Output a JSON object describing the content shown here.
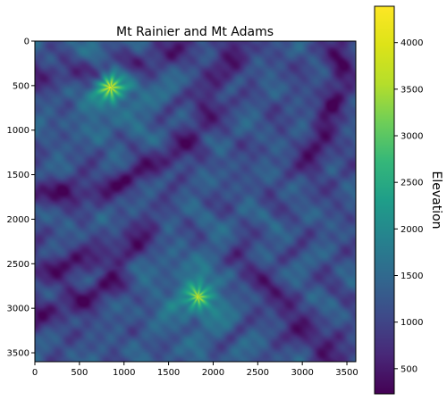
{
  "chart_data": {
    "type": "heatmap",
    "title": "Mt Rainier and Mt Adams",
    "xlabel": "",
    "ylabel": "",
    "xlim": [
      0,
      3600
    ],
    "ylim": [
      3600,
      0
    ],
    "x_ticks": [
      0,
      500,
      1000,
      1500,
      2000,
      2500,
      3000,
      3500
    ],
    "y_ticks": [
      0,
      500,
      1000,
      1500,
      2000,
      2500,
      3000,
      3500
    ],
    "colormap": "viridis",
    "colorbar": {
      "label": "Elevation",
      "min": 230,
      "max": 4390,
      "ticks": [
        500,
        1000,
        1500,
        2000,
        2500,
        3000,
        3500,
        4000
      ]
    },
    "features": [
      {
        "kind": "peak",
        "x": 850,
        "y": 520,
        "elevation": 4390
      },
      {
        "kind": "peak",
        "x": 1830,
        "y": 2870,
        "elevation": 3740
      },
      {
        "kind": "valley",
        "points": [
          [
            0,
            1700
          ],
          [
            500,
            1700
          ],
          [
            1000,
            1560
          ],
          [
            1500,
            1340
          ],
          [
            1850,
            950
          ],
          [
            2000,
            500
          ],
          [
            2300,
            0
          ]
        ],
        "elevation": 500
      },
      {
        "kind": "valley",
        "points": [
          [
            0,
            420
          ],
          [
            700,
            350
          ],
          [
            1300,
            200
          ],
          [
            1700,
            0
          ]
        ],
        "elevation": 700
      },
      {
        "kind": "valley",
        "points": [
          [
            0,
            2550
          ],
          [
            600,
            2500
          ],
          [
            1000,
            2350
          ],
          [
            1300,
            2100
          ]
        ],
        "elevation": 700
      },
      {
        "kind": "valley",
        "points": [
          [
            2300,
            2450
          ],
          [
            2650,
            2900
          ],
          [
            3000,
            3250
          ],
          [
            3450,
            3600
          ]
        ],
        "elevation": 600
      },
      {
        "kind": "valley",
        "points": [
          [
            3450,
            0
          ],
          [
            3400,
            500
          ],
          [
            3250,
            1000
          ],
          [
            3100,
            1400
          ]
        ],
        "elevation": 650
      },
      {
        "kind": "valley",
        "points": [
          [
            0,
            3050
          ],
          [
            500,
            2950
          ],
          [
            900,
            2700
          ]
        ],
        "elevation": 650
      }
    ]
  }
}
